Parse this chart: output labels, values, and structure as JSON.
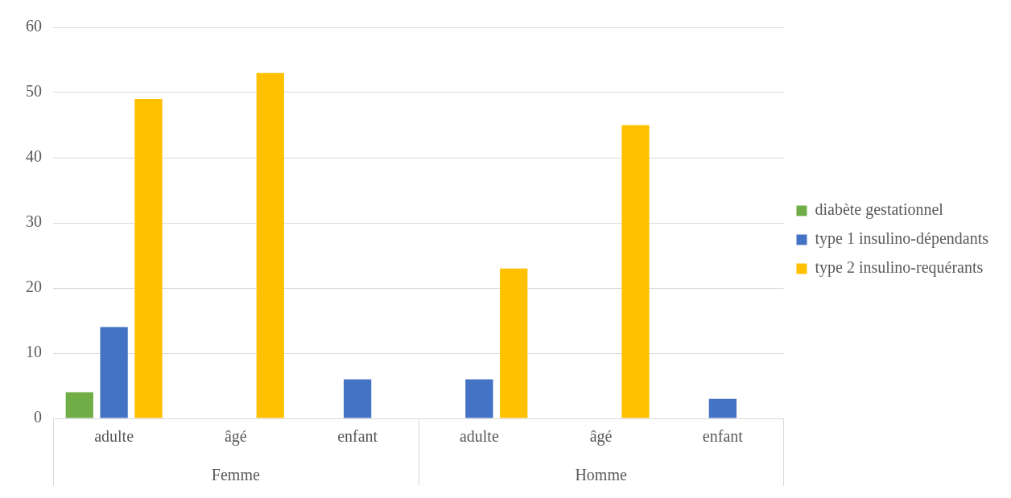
{
  "chart_data": {
    "type": "bar",
    "categories": [
      "adulte",
      "âgé",
      "enfant",
      "adulte",
      "âgé",
      "enfant"
    ],
    "annotations": [
      "Femme",
      "Homme"
    ],
    "series": [
      {
        "name": "diabète gestationnel",
        "color": "#70ad47",
        "values": [
          4,
          null,
          null,
          null,
          null,
          null
        ]
      },
      {
        "name": "type 1 insulino-dépendants",
        "color": "#4472c4",
        "values": [
          14,
          null,
          6,
          6,
          null,
          3
        ]
      },
      {
        "name": "type 2 insulino-requérants",
        "color": "#ffc000",
        "values": [
          49,
          53,
          null,
          23,
          45,
          null
        ]
      }
    ],
    "ylim": [
      0,
      60
    ],
    "yticks": [
      0,
      10,
      20,
      30,
      40,
      50,
      60
    ],
    "grid": "y",
    "legend": "right"
  }
}
